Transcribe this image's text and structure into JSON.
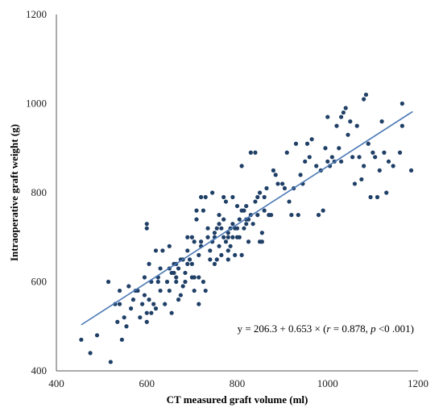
{
  "chart_data": {
    "type": "scatter",
    "title": "",
    "xlabel": "CT measured graft volume (ml)",
    "ylabel": "Intraoperative graft weight (g)",
    "xlim": [
      400,
      1200
    ],
    "ylim": [
      400,
      1200
    ],
    "xticks": [
      400,
      600,
      800,
      1000,
      1200
    ],
    "yticks": [
      400,
      600,
      800,
      1000,
      1200
    ],
    "grid": false,
    "legend": "none",
    "point_color": "#1f3f66",
    "line_color": "#4a78b5",
    "trendline": {
      "intercept": 206.3,
      "slope": 0.653,
      "x_range": [
        455,
        1188
      ]
    },
    "annotation": {
      "prefix": "y = 206.3 + 0.653 × (",
      "r_symbol": "r",
      "r_value": " = 0.878, ",
      "p_symbol": "p",
      "p_value": " <0 .001)"
    },
    "points": [
      [
        455,
        470
      ],
      [
        475,
        440
      ],
      [
        490,
        480
      ],
      [
        515,
        600
      ],
      [
        520,
        420
      ],
      [
        530,
        550
      ],
      [
        535,
        510
      ],
      [
        540,
        550
      ],
      [
        540,
        580
      ],
      [
        545,
        470
      ],
      [
        550,
        520
      ],
      [
        555,
        500
      ],
      [
        560,
        590
      ],
      [
        565,
        540
      ],
      [
        570,
        560
      ],
      [
        575,
        580
      ],
      [
        580,
        580
      ],
      [
        585,
        520
      ],
      [
        590,
        550
      ],
      [
        595,
        610
      ],
      [
        595,
        570
      ],
      [
        600,
        530
      ],
      [
        600,
        510
      ],
      [
        600,
        720
      ],
      [
        600,
        730
      ],
      [
        605,
        560
      ],
      [
        605,
        640
      ],
      [
        610,
        600
      ],
      [
        610,
        530
      ],
      [
        615,
        550
      ],
      [
        620,
        540
      ],
      [
        620,
        670
      ],
      [
        625,
        600
      ],
      [
        625,
        610
      ],
      [
        630,
        580
      ],
      [
        630,
        630
      ],
      [
        635,
        670
      ],
      [
        640,
        550
      ],
      [
        645,
        600
      ],
      [
        650,
        630
      ],
      [
        650,
        580
      ],
      [
        650,
        680
      ],
      [
        655,
        620
      ],
      [
        655,
        530
      ],
      [
        660,
        640
      ],
      [
        660,
        620
      ],
      [
        665,
        600
      ],
      [
        665,
        640
      ],
      [
        665,
        610
      ],
      [
        670,
        630
      ],
      [
        670,
        560
      ],
      [
        675,
        570
      ],
      [
        675,
        650
      ],
      [
        680,
        650
      ],
      [
        680,
        590
      ],
      [
        685,
        600
      ],
      [
        685,
        620
      ],
      [
        690,
        640
      ],
      [
        690,
        670
      ],
      [
        690,
        700
      ],
      [
        695,
        650
      ],
      [
        700,
        610
      ],
      [
        700,
        700
      ],
      [
        700,
        640
      ],
      [
        705,
        690
      ],
      [
        705,
        580
      ],
      [
        705,
        610
      ],
      [
        710,
        740
      ],
      [
        710,
        760
      ],
      [
        715,
        550
      ],
      [
        715,
        610
      ],
      [
        715,
        660
      ],
      [
        720,
        790
      ],
      [
        720,
        690
      ],
      [
        720,
        680
      ],
      [
        725,
        760
      ],
      [
        725,
        600
      ],
      [
        730,
        790
      ],
      [
        730,
        580
      ],
      [
        735,
        700
      ],
      [
        735,
        720
      ],
      [
        740,
        650
      ],
      [
        740,
        670
      ],
      [
        745,
        800
      ],
      [
        745,
        690
      ],
      [
        750,
        640
      ],
      [
        750,
        700
      ],
      [
        750,
        710
      ],
      [
        755,
        720
      ],
      [
        755,
        650
      ],
      [
        760,
        730
      ],
      [
        760,
        750
      ],
      [
        760,
        680
      ],
      [
        765,
        660
      ],
      [
        765,
        720
      ],
      [
        770,
        700
      ],
      [
        770,
        740
      ],
      [
        770,
        790
      ],
      [
        775,
        780
      ],
      [
        775,
        690
      ],
      [
        780,
        710
      ],
      [
        780,
        700
      ],
      [
        780,
        650
      ],
      [
        780,
        670
      ],
      [
        785,
        720
      ],
      [
        785,
        680
      ],
      [
        790,
        700
      ],
      [
        790,
        730
      ],
      [
        790,
        790
      ],
      [
        795,
        720
      ],
      [
        795,
        660
      ],
      [
        800,
        770
      ],
      [
        800,
        700
      ],
      [
        800,
        720
      ],
      [
        805,
        740
      ],
      [
        805,
        700
      ],
      [
        810,
        760
      ],
      [
        810,
        660
      ],
      [
        810,
        860
      ],
      [
        815,
        720
      ],
      [
        815,
        760
      ],
      [
        820,
        730
      ],
      [
        820,
        740
      ],
      [
        820,
        770
      ],
      [
        825,
        740
      ],
      [
        825,
        690
      ],
      [
        830,
        890
      ],
      [
        830,
        750
      ],
      [
        835,
        730
      ],
      [
        840,
        780
      ],
      [
        840,
        890
      ],
      [
        845,
        790
      ],
      [
        845,
        750
      ],
      [
        850,
        800
      ],
      [
        850,
        690
      ],
      [
        855,
        690
      ],
      [
        855,
        710
      ],
      [
        860,
        790
      ],
      [
        860,
        760
      ],
      [
        865,
        810
      ],
      [
        870,
        750
      ],
      [
        875,
        750
      ],
      [
        880,
        850
      ],
      [
        885,
        840
      ],
      [
        890,
        820
      ],
      [
        900,
        820
      ],
      [
        905,
        810
      ],
      [
        910,
        890
      ],
      [
        915,
        780
      ],
      [
        920,
        750
      ],
      [
        925,
        810
      ],
      [
        930,
        910
      ],
      [
        935,
        750
      ],
      [
        940,
        840
      ],
      [
        945,
        820
      ],
      [
        950,
        870
      ],
      [
        955,
        910
      ],
      [
        960,
        880
      ],
      [
        965,
        920
      ],
      [
        975,
        860
      ],
      [
        980,
        750
      ],
      [
        985,
        850
      ],
      [
        990,
        760
      ],
      [
        995,
        900
      ],
      [
        1000,
        870
      ],
      [
        1000,
        970
      ],
      [
        1005,
        860
      ],
      [
        1010,
        880
      ],
      [
        1015,
        870
      ],
      [
        1020,
        950
      ],
      [
        1025,
        900
      ],
      [
        1030,
        870
      ],
      [
        1030,
        970
      ],
      [
        1035,
        980
      ],
      [
        1040,
        990
      ],
      [
        1045,
        930
      ],
      [
        1050,
        960
      ],
      [
        1055,
        880
      ],
      [
        1060,
        820
      ],
      [
        1065,
        950
      ],
      [
        1070,
        880
      ],
      [
        1075,
        830
      ],
      [
        1080,
        860
      ],
      [
        1080,
        1010
      ],
      [
        1085,
        1020
      ],
      [
        1090,
        910
      ],
      [
        1095,
        790
      ],
      [
        1100,
        890
      ],
      [
        1105,
        880
      ],
      [
        1110,
        790
      ],
      [
        1115,
        850
      ],
      [
        1120,
        960
      ],
      [
        1125,
        890
      ],
      [
        1130,
        800
      ],
      [
        1135,
        870
      ],
      [
        1145,
        860
      ],
      [
        1160,
        890
      ],
      [
        1165,
        950
      ],
      [
        1165,
        1000
      ],
      [
        1185,
        850
      ]
    ]
  }
}
